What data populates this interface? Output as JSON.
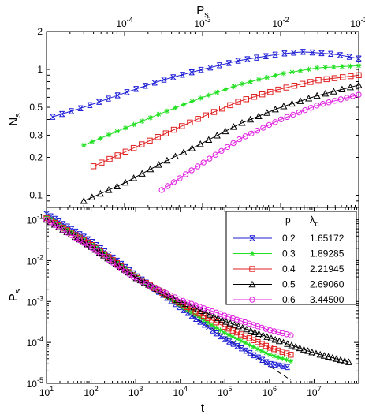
{
  "chart_data": [
    {
      "panel": "top",
      "type": "line",
      "title": "",
      "xlabel": "P",
      "xlabel_sub": "s",
      "ylabel": "N",
      "ylabel_sub": "s",
      "x_scale": "log",
      "y_scale": "log",
      "xlim": [
        1e-05,
        0.1
      ],
      "ylim": [
        0.08,
        2
      ],
      "grid": false,
      "x_ticks": [
        {
          "value": 0.0001,
          "base": "10",
          "exp": "-4"
        },
        {
          "value": 0.001,
          "base": "10",
          "exp": "-3"
        },
        {
          "value": 0.01,
          "base": "10",
          "exp": "-2"
        },
        {
          "value": 0.1,
          "base": "10",
          "exp": "-1"
        }
      ],
      "y_ticks": [
        {
          "value": 0.1,
          "label": "0.1"
        },
        {
          "value": 0.2,
          "label": "0.2"
        },
        {
          "value": 0.3,
          "label": "0.3"
        },
        {
          "value": 0.5,
          "label": "0.5"
        },
        {
          "value": 1,
          "label": "1"
        },
        {
          "value": 2,
          "label": "2"
        }
      ],
      "series": [
        {
          "p": "0.2",
          "color": "#1f1fd6",
          "marker": "x",
          "x": [
            1.2e-05,
            3e-05,
            0.0001,
            0.0003,
            0.001,
            0.003,
            0.01,
            0.02,
            0.05,
            0.1
          ],
          "y": [
            0.42,
            0.5,
            0.65,
            0.82,
            1.0,
            1.18,
            1.33,
            1.38,
            1.32,
            1.22
          ]
        },
        {
          "p": "0.3",
          "color": "#22e022",
          "marker": "asterisk",
          "x": [
            3e-05,
            0.0001,
            0.0003,
            0.001,
            0.003,
            0.01,
            0.03,
            0.1
          ],
          "y": [
            0.25,
            0.34,
            0.45,
            0.6,
            0.76,
            0.92,
            1.03,
            1.07
          ]
        },
        {
          "p": "0.4",
          "color": "#e01f1f",
          "marker": "square",
          "x": [
            4e-05,
            0.0001,
            0.0003,
            0.001,
            0.003,
            0.01,
            0.03,
            0.1
          ],
          "y": [
            0.17,
            0.22,
            0.3,
            0.42,
            0.56,
            0.7,
            0.82,
            0.9
          ]
        },
        {
          "p": "0.5",
          "color": "#000000",
          "marker": "triangle",
          "x": [
            3e-05,
            0.0001,
            0.0003,
            0.001,
            0.003,
            0.01,
            0.03,
            0.1
          ],
          "y": [
            0.09,
            0.125,
            0.18,
            0.26,
            0.37,
            0.5,
            0.62,
            0.75
          ]
        },
        {
          "p": "0.6",
          "color": "#e020e0",
          "marker": "circle",
          "x": [
            0.0003,
            0.001,
            0.003,
            0.01,
            0.03,
            0.1
          ],
          "y": [
            0.11,
            0.18,
            0.28,
            0.4,
            0.52,
            0.63
          ]
        }
      ]
    },
    {
      "panel": "bottom",
      "type": "line",
      "title": "",
      "xlabel": "t",
      "ylabel": "P",
      "ylabel_sub": "s",
      "x_scale": "log",
      "y_scale": "log",
      "xlim": [
        10,
        100000000
      ],
      "ylim": [
        1e-05,
        0.2
      ],
      "grid": false,
      "x_ticks": [
        {
          "value": 10,
          "base": "10",
          "exp": "1"
        },
        {
          "value": 100,
          "base": "10",
          "exp": "2"
        },
        {
          "value": 1000,
          "base": "10",
          "exp": "3"
        },
        {
          "value": 10000,
          "base": "10",
          "exp": "4"
        },
        {
          "value": 100000,
          "base": "10",
          "exp": "5"
        },
        {
          "value": 1000000,
          "base": "10",
          "exp": "6"
        },
        {
          "value": 10000000,
          "base": "10",
          "exp": "7"
        }
      ],
      "y_ticks": [
        {
          "value": 0.1,
          "base": "10",
          "exp": "-1"
        },
        {
          "value": 0.01,
          "base": "10",
          "exp": "-2"
        },
        {
          "value": 0.001,
          "base": "10",
          "exp": "-3"
        },
        {
          "value": 0.0001,
          "base": "10",
          "exp": "-4"
        },
        {
          "value": 1e-05,
          "base": "10",
          "exp": "-5"
        }
      ],
      "legend": {
        "placement": "top-right",
        "header_p": "p",
        "header_lambda": "λ",
        "header_lambda_sub": "c"
      },
      "reference_line": {
        "style": "dashed",
        "color": "#000000",
        "x": [
          10,
          3000000
        ],
        "y": [
          0.1,
          1.2e-05
        ]
      },
      "series": [
        {
          "p": "0.2",
          "lambda_c": "1.65172",
          "color": "#1f1fd6",
          "marker": "x",
          "x": [
            10,
            100,
            1000,
            10000,
            100000,
            1000000,
            2500000
          ],
          "y": [
            0.14,
            0.03,
            0.0045,
            0.0007,
            0.00012,
            3e-05,
            2.5e-05
          ]
        },
        {
          "p": "0.3",
          "lambda_c": "1.89285",
          "color": "#22e022",
          "marker": "asterisk",
          "x": [
            10,
            100,
            1000,
            10000,
            100000,
            1000000,
            3000000
          ],
          "y": [
            0.12,
            0.025,
            0.0042,
            0.0008,
            0.00017,
            5e-05,
            3.5e-05
          ]
        },
        {
          "p": "0.4",
          "lambda_c": "2.21945",
          "color": "#e01f1f",
          "marker": "square",
          "x": [
            10,
            100,
            1000,
            10000,
            100000,
            1000000,
            3000000
          ],
          "y": [
            0.11,
            0.025,
            0.004,
            0.0009,
            0.00024,
            7.5e-05,
            5e-05
          ]
        },
        {
          "p": "0.5",
          "lambda_c": "2.69060",
          "color": "#000000",
          "marker": "triangle",
          "x": [
            10,
            100,
            1000,
            10000,
            100000,
            1000000,
            10000000,
            60000000
          ],
          "y": [
            0.1,
            0.022,
            0.0038,
            0.001,
            0.00033,
            0.00013,
            5.5e-05,
            3.3e-05
          ]
        },
        {
          "p": "0.6",
          "lambda_c": "3.44500",
          "color": "#e020e0",
          "marker": "circle",
          "x": [
            10,
            100,
            1000,
            10000,
            100000,
            1000000,
            3000000
          ],
          "y": [
            0.1,
            0.021,
            0.0036,
            0.0011,
            0.00045,
            0.0002,
            0.00015
          ]
        }
      ]
    }
  ]
}
